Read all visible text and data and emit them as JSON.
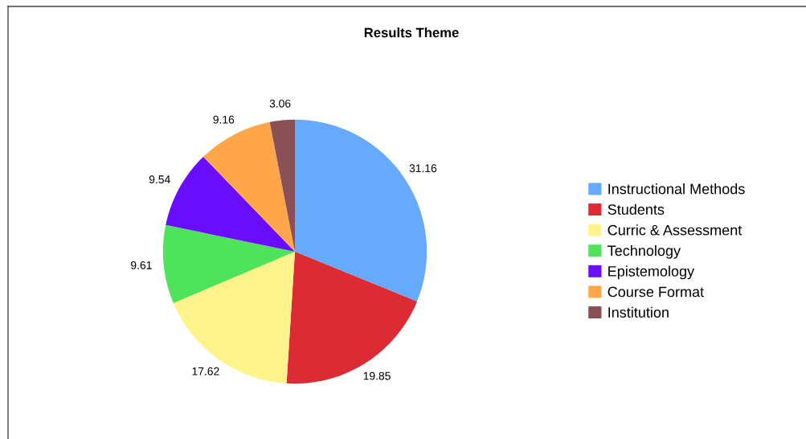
{
  "chart_data": {
    "type": "pie",
    "title": "Results Theme",
    "categories": [
      "Instructional Methods",
      "Students",
      "Curric & Assessment",
      "Technology",
      "Epistemology",
      "Course Format",
      "Institution"
    ],
    "values": [
      31.16,
      19.85,
      17.62,
      9.61,
      9.54,
      9.16,
      3.06
    ],
    "colors": [
      "#66aaff",
      "#dd2b33",
      "#fff48c",
      "#4ee35a",
      "#6a0cff",
      "#ffa64a",
      "#8b5056"
    ],
    "data_labels": true,
    "legend": "right"
  }
}
